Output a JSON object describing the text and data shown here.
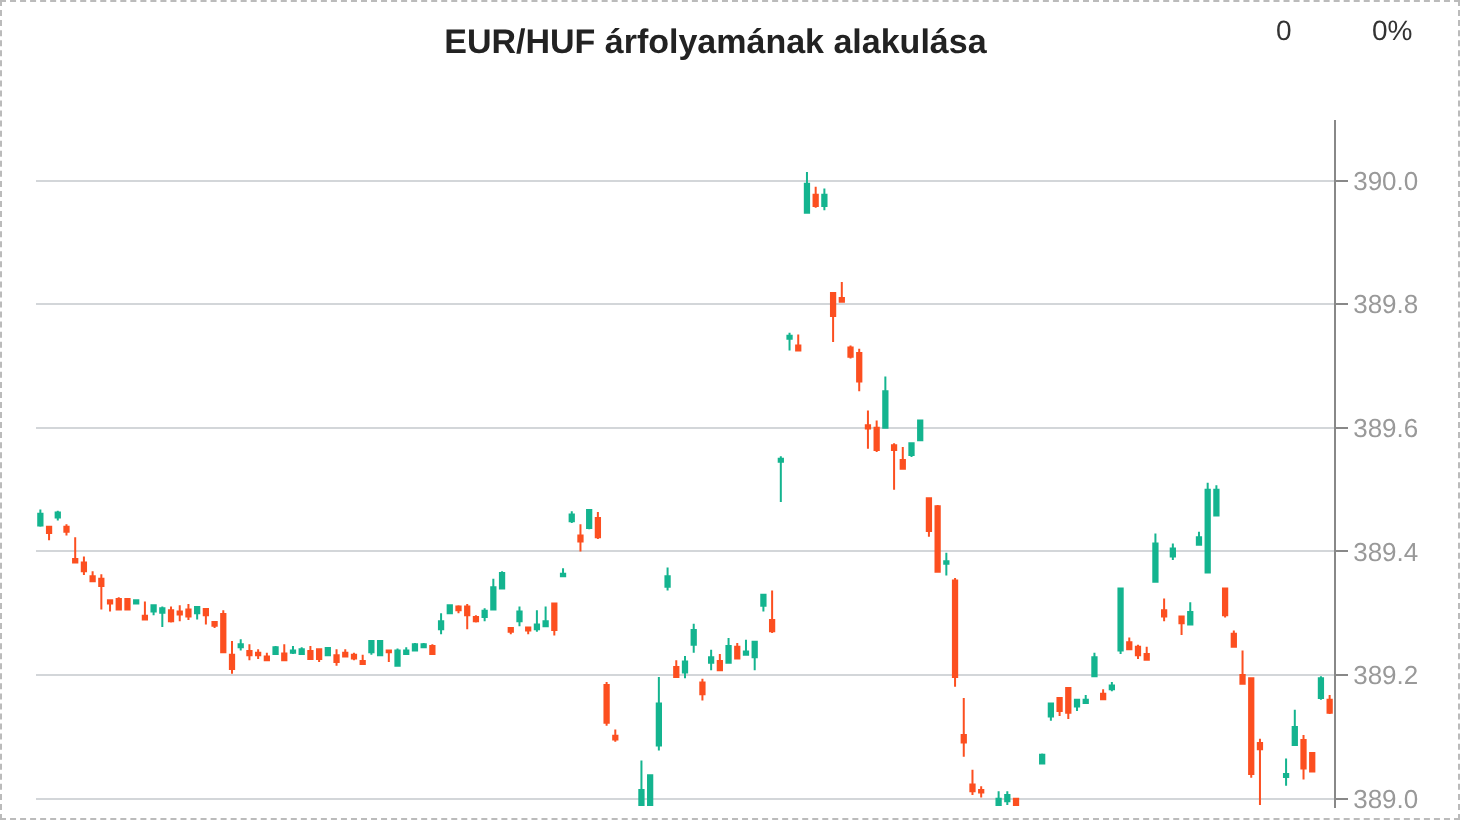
{
  "chart_data": {
    "type": "candlestick",
    "title": "EUR/HUF árfolyamának alakulása",
    "annotations": [
      "0",
      "0%"
    ],
    "categories": [
      null,
      null,
      null,
      null,
      null,
      null,
      null,
      null,
      null,
      null,
      null,
      null,
      null,
      null,
      null,
      null,
      null,
      null,
      null,
      null,
      null,
      null,
      null,
      null,
      null,
      null,
      null,
      null,
      null,
      null,
      null,
      null,
      null,
      null,
      null,
      null,
      null,
      null,
      null,
      null,
      null,
      null,
      null,
      null,
      null,
      null,
      null,
      null,
      null,
      null,
      null,
      null,
      null,
      null,
      null,
      null,
      null,
      null,
      null,
      null,
      null,
      null,
      null,
      null,
      null,
      null,
      null,
      null,
      null,
      null,
      null,
      null,
      null,
      null,
      null,
      null,
      null,
      null,
      null,
      null,
      null,
      null,
      null,
      null,
      null,
      null,
      null,
      null,
      null,
      null,
      null,
      null,
      null,
      null,
      null,
      null,
      null,
      null,
      null,
      null,
      null,
      null,
      null,
      null,
      null,
      null,
      null,
      null,
      null,
      null,
      null,
      null,
      null,
      null,
      null,
      null,
      null,
      null,
      null,
      null,
      null,
      null,
      null,
      null,
      null,
      null,
      null,
      null,
      null,
      null,
      null,
      null,
      null,
      null,
      null,
      null,
      null,
      null,
      null,
      null,
      null,
      null,
      null,
      null,
      null,
      null,
      null,
      null,
      null
    ],
    "colors": [
      "#14b48f",
      "#fc4f20",
      "#14b48f",
      "#fc4f20",
      "#fc4f20",
      "#fc4f20",
      "#fc4f20",
      "#fc4f20",
      "#fc4f20",
      "#fc4f20",
      "#fc4f20",
      "#14b48f",
      "#fc4f20",
      "#14b48f",
      "#14b48f",
      "#fc4f20",
      "#fc4f20",
      "#fc4f20",
      "#14b48f",
      "#fc4f20",
      "#fc4f20",
      "#fc4f20",
      "#fc4f20",
      "#14b48f",
      "#fc4f20",
      "#fc4f20",
      "#fc4f20",
      "#14b48f",
      "#fc4f20",
      "#14b48f",
      "#14b48f",
      "#fc4f20",
      "#fc4f20",
      "#14b48f",
      "#fc4f20",
      "#fc4f20",
      "#fc4f20",
      "#fc4f20",
      "#14b48f",
      "#14b48f",
      "#fc4f20",
      "#14b48f",
      "#14b48f",
      "#14b48f",
      "#14b48f",
      "#fc4f20",
      "#14b48f",
      "#14b48f",
      "#fc4f20",
      "#fc4f20",
      "#fc4f20",
      "#14b48f",
      "#14b48f",
      "#14b48f",
      "#fc4f20",
      "#14b48f",
      "#fc4f20",
      "#14b48f",
      "#14b48f",
      "#fc4f20",
      "#14b48f",
      "#14b48f",
      "#fc4f20",
      "#14b48f",
      "#fc4f20",
      "#fc4f20",
      "#fc4f20",
      null,
      null,
      "#14b48f",
      "#14b48f",
      "#14b48f",
      "#14b48f",
      "#fc4f20",
      "#14b48f",
      "#14b48f",
      "#fc4f20",
      "#14b48f",
      "#fc4f20",
      "#14b48f",
      "#fc4f20",
      "#14b48f",
      "#14b48f",
      "#14b48f",
      "#fc4f20",
      "#14b48f",
      "#14b48f",
      "#fc4f20",
      "#14b48f",
      "#fc4f20",
      "#14b48f",
      "#fc4f20",
      "#fc4f20",
      "#fc4f20",
      "#fc4f20",
      "#fc4f20",
      "#fc4f20",
      "#14b48f",
      "#fc4f20",
      "#fc4f20",
      "#14b48f",
      "#14b48f",
      "#fc4f20",
      "#fc4f20",
      "#14b48f",
      "#fc4f20",
      "#fc4f20",
      "#fc4f20",
      "#fc4f20",
      null,
      "#14b48f",
      "#14b48f",
      "#fc4f20",
      null,
      null,
      "#14b48f",
      "#14b48f",
      "#fc4f20",
      "#fc4f20",
      "#14b48f",
      "#14b48f",
      "#14b48f",
      "#fc4f20",
      "#14b48f",
      "#14b48f",
      "#fc4f20",
      "#fc4f20",
      "#fc4f20",
      "#14b48f",
      "#fc4f20",
      "#14b48f",
      "#fc4f20",
      "#14b48f",
      "#14b48f",
      "#14b48f",
      "#14b48f",
      "#fc4f20",
      "#fc4f20",
      "#fc4f20",
      "#fc4f20",
      "#fc4f20",
      null,
      null,
      "#14b48f",
      "#14b48f",
      "#fc4f20",
      "#fc4f20",
      "#14b48f",
      "#fc4f20"
    ],
    "ohlc": [
      [
        389.442,
        389.468,
        389.44,
        389.461
      ],
      [
        389.44,
        389.44,
        389.418,
        389.43
      ],
      [
        389.455,
        389.466,
        389.45,
        389.463
      ],
      [
        389.44,
        389.444,
        389.426,
        389.432
      ],
      [
        389.388,
        389.423,
        389.382,
        389.382
      ],
      [
        389.382,
        389.392,
        389.362,
        389.368
      ],
      [
        389.36,
        389.368,
        389.352,
        389.352
      ],
      [
        389.356,
        389.363,
        389.306,
        389.344
      ],
      [
        389.321,
        389.321,
        389.303,
        389.316
      ],
      [
        389.323,
        389.326,
        389.306,
        389.306
      ],
      [
        389.323,
        389.323,
        389.306,
        389.306
      ],
      [
        389.316,
        389.321,
        389.316,
        389.321
      ],
      [
        389.296,
        389.319,
        389.29,
        389.29
      ],
      [
        389.303,
        389.313,
        389.297,
        389.313
      ],
      [
        389.301,
        389.311,
        389.278,
        389.308
      ],
      [
        389.305,
        389.311,
        389.285,
        389.287
      ],
      [
        389.303,
        389.313,
        389.287,
        389.298
      ],
      [
        389.306,
        389.315,
        389.289,
        389.295
      ],
      [
        389.3,
        389.31,
        389.29,
        389.31
      ],
      [
        389.307,
        389.307,
        389.282,
        389.297
      ],
      [
        389.286,
        389.286,
        389.276,
        389.28
      ],
      [
        389.299,
        389.305,
        389.237,
        389.237
      ],
      [
        389.233,
        389.255,
        389.202,
        389.21
      ],
      [
        389.245,
        389.258,
        389.24,
        389.25
      ],
      [
        389.239,
        389.25,
        389.224,
        389.232
      ],
      [
        389.236,
        389.242,
        389.226,
        389.232
      ],
      [
        389.23,
        389.236,
        389.224,
        389.224
      ],
      [
        389.234,
        389.247,
        389.234,
        389.245
      ],
      [
        389.235,
        389.25,
        389.224,
        389.224
      ],
      [
        389.236,
        389.247,
        389.234,
        389.24
      ],
      [
        389.234,
        389.245,
        389.234,
        389.242
      ],
      [
        389.239,
        389.247,
        389.226,
        389.226
      ],
      [
        389.242,
        389.242,
        389.221,
        389.226
      ],
      [
        389.232,
        389.244,
        389.232,
        389.244
      ],
      [
        389.232,
        389.242,
        389.215,
        389.221
      ],
      [
        389.236,
        389.242,
        389.23,
        389.23
      ],
      [
        389.233,
        389.236,
        389.224,
        389.227
      ],
      [
        389.223,
        389.233,
        389.218,
        389.218
      ],
      [
        389.237,
        389.255,
        389.233,
        389.255
      ],
      [
        389.232,
        389.255,
        389.232,
        389.255
      ],
      [
        389.24,
        389.24,
        389.221,
        389.237
      ],
      [
        389.215,
        389.243,
        389.215,
        389.24
      ],
      [
        389.234,
        389.245,
        389.234,
        389.24
      ],
      [
        389.24,
        389.252,
        389.24,
        389.25
      ],
      [
        389.245,
        389.252,
        389.245,
        389.25
      ],
      [
        389.247,
        389.25,
        389.234,
        389.234
      ],
      [
        389.274,
        389.3,
        389.266,
        389.287
      ],
      [
        389.3,
        389.313,
        389.3,
        389.313
      ],
      [
        389.311,
        389.313,
        389.3,
        389.305
      ],
      [
        389.311,
        389.315,
        389.274,
        389.297
      ],
      [
        389.294,
        389.297,
        389.285,
        389.287
      ],
      [
        389.294,
        389.308,
        389.287,
        389.304
      ],
      [
        389.306,
        389.356,
        389.306,
        389.342
      ],
      [
        389.34,
        389.368,
        389.34,
        389.365
      ],
      [
        389.276,
        389.276,
        389.266,
        389.27
      ],
      [
        389.287,
        389.311,
        389.279,
        389.303
      ],
      [
        389.277,
        389.277,
        389.266,
        389.272
      ],
      [
        389.274,
        389.305,
        389.27,
        389.282
      ],
      [
        389.279,
        389.311,
        389.279,
        389.287
      ],
      [
        389.316,
        389.316,
        389.264,
        389.273
      ],
      [
        389.36,
        389.373,
        389.36,
        389.364
      ],
      [
        389.449,
        389.465,
        389.446,
        389.46
      ],
      [
        389.426,
        389.444,
        389.4,
        389.416
      ],
      [
        389.438,
        389.467,
        389.436,
        389.467
      ],
      [
        389.454,
        389.464,
        389.42,
        389.423
      ],
      [
        389.184,
        389.189,
        389.118,
        389.123
      ],
      [
        389.102,
        389.112,
        389.092,
        389.096
      ],
      null,
      null,
      [
        388.99,
        389.062,
        388.99,
        389.014
      ],
      [
        388.99,
        389.038,
        388.99,
        389.038
      ],
      [
        389.086,
        389.197,
        389.078,
        389.154
      ],
      [
        389.343,
        389.374,
        389.337,
        389.36
      ],
      [
        389.213,
        389.224,
        389.197,
        389.197
      ],
      [
        389.204,
        389.231,
        389.195,
        389.222
      ],
      [
        389.249,
        389.283,
        389.236,
        389.273
      ],
      [
        389.188,
        389.194,
        389.159,
        389.169
      ],
      [
        389.22,
        389.241,
        389.208,
        389.229
      ],
      [
        389.223,
        389.234,
        389.208,
        389.208
      ],
      [
        389.22,
        389.26,
        389.22,
        389.247
      ],
      [
        389.246,
        389.252,
        389.227,
        389.227
      ],
      [
        389.233,
        389.257,
        389.233,
        389.238
      ],
      [
        389.229,
        389.254,
        389.208,
        389.254
      ],
      [
        389.312,
        389.33,
        389.303,
        389.33
      ],
      [
        389.289,
        389.337,
        389.268,
        389.271
      ],
      [
        389.545,
        389.554,
        389.48,
        389.55
      ],
      [
        389.744,
        389.754,
        389.725,
        389.749
      ],
      [
        389.733,
        389.751,
        389.725,
        389.725
      ],
      [
        389.948,
        390.014,
        389.948,
        389.995
      ],
      [
        389.977,
        389.99,
        389.956,
        389.959
      ],
      [
        389.959,
        389.987,
        389.952,
        389.977
      ],
      [
        389.818,
        389.818,
        389.739,
        389.781
      ],
      [
        389.81,
        389.836,
        389.804,
        389.804
      ],
      [
        389.73,
        389.733,
        389.712,
        389.715
      ],
      [
        389.721,
        389.728,
        389.659,
        389.675
      ],
      [
        389.604,
        389.628,
        389.566,
        389.599
      ],
      [
        389.6,
        389.612,
        389.561,
        389.564
      ],
      [
        389.6,
        389.683,
        389.6,
        389.659
      ],
      [
        389.572,
        389.575,
        389.5,
        389.564
      ],
      [
        389.548,
        389.569,
        389.534,
        389.534
      ],
      [
        389.556,
        389.575,
        389.553,
        389.575
      ],
      [
        389.58,
        389.612,
        389.58,
        389.612
      ],
      [
        389.486,
        389.486,
        389.424,
        389.433
      ],
      [
        389.473,
        389.475,
        389.367,
        389.367
      ],
      [
        389.38,
        389.398,
        389.361,
        389.384
      ],
      [
        389.353,
        389.357,
        389.181,
        389.197
      ],
      [
        389.103,
        389.163,
        389.068,
        389.091
      ],
      [
        389.023,
        389.047,
        389.006,
        389.012
      ],
      [
        389.014,
        389.02,
        389.002,
        389.01
      ],
      null,
      [
        388.99,
        389.012,
        388.99,
        389.0
      ],
      [
        388.996,
        389.012,
        388.99,
        389.006
      ],
      [
        389.0,
        389.0,
        388.99,
        388.99
      ],
      null,
      null,
      [
        389.057,
        389.073,
        389.057,
        389.071
      ],
      [
        389.133,
        389.154,
        389.126,
        389.154
      ],
      [
        389.163,
        389.163,
        389.134,
        389.142
      ],
      [
        389.179,
        389.179,
        389.129,
        389.139
      ],
      [
        389.149,
        389.16,
        389.142,
        389.16
      ],
      [
        389.155,
        389.168,
        389.155,
        389.16
      ],
      [
        389.198,
        389.236,
        389.198,
        389.229
      ],
      [
        389.17,
        389.177,
        389.161,
        389.161
      ],
      [
        389.177,
        389.189,
        389.174,
        389.183
      ],
      [
        389.24,
        389.34,
        389.234,
        389.34
      ],
      [
        389.253,
        389.261,
        389.242,
        389.242
      ],
      [
        389.246,
        389.249,
        389.226,
        389.232
      ],
      [
        389.234,
        389.246,
        389.225,
        389.225
      ],
      [
        389.351,
        389.429,
        389.351,
        389.413
      ],
      [
        389.305,
        389.324,
        389.287,
        389.295
      ],
      [
        389.392,
        389.413,
        389.386,
        389.405
      ],
      [
        389.295,
        389.295,
        389.265,
        389.284
      ],
      [
        389.282,
        389.318,
        389.282,
        389.302
      ],
      [
        389.411,
        389.432,
        389.411,
        389.423
      ],
      [
        389.366,
        389.511,
        389.366,
        389.5
      ],
      [
        389.458,
        389.507,
        389.458,
        389.5
      ],
      [
        389.34,
        389.34,
        389.293,
        389.297
      ],
      [
        389.267,
        389.272,
        389.246,
        389.246
      ],
      [
        389.2,
        389.24,
        389.186,
        389.186
      ],
      [
        389.195,
        389.195,
        389.034,
        389.04
      ],
      [
        389.09,
        389.097,
        388.99,
        389.08
      ],
      null,
      null,
      [
        389.035,
        389.065,
        389.021,
        389.04
      ],
      [
        389.087,
        389.144,
        389.087,
        389.116
      ],
      [
        389.095,
        389.103,
        389.031,
        389.049
      ],
      [
        389.074,
        389.074,
        389.044,
        389.044
      ],
      [
        389.163,
        389.198,
        389.16,
        389.195
      ],
      [
        389.16,
        389.168,
        389.137,
        389.139
      ]
    ],
    "ylim": [
      388.985,
      390.098
    ],
    "yticks": [
      {
        "value": 389,
        "label": "389.0"
      },
      389.2,
      389.4,
      389.6,
      389.8,
      {
        "value": 390,
        "label": "390.0"
      }
    ],
    "grid": "y"
  }
}
